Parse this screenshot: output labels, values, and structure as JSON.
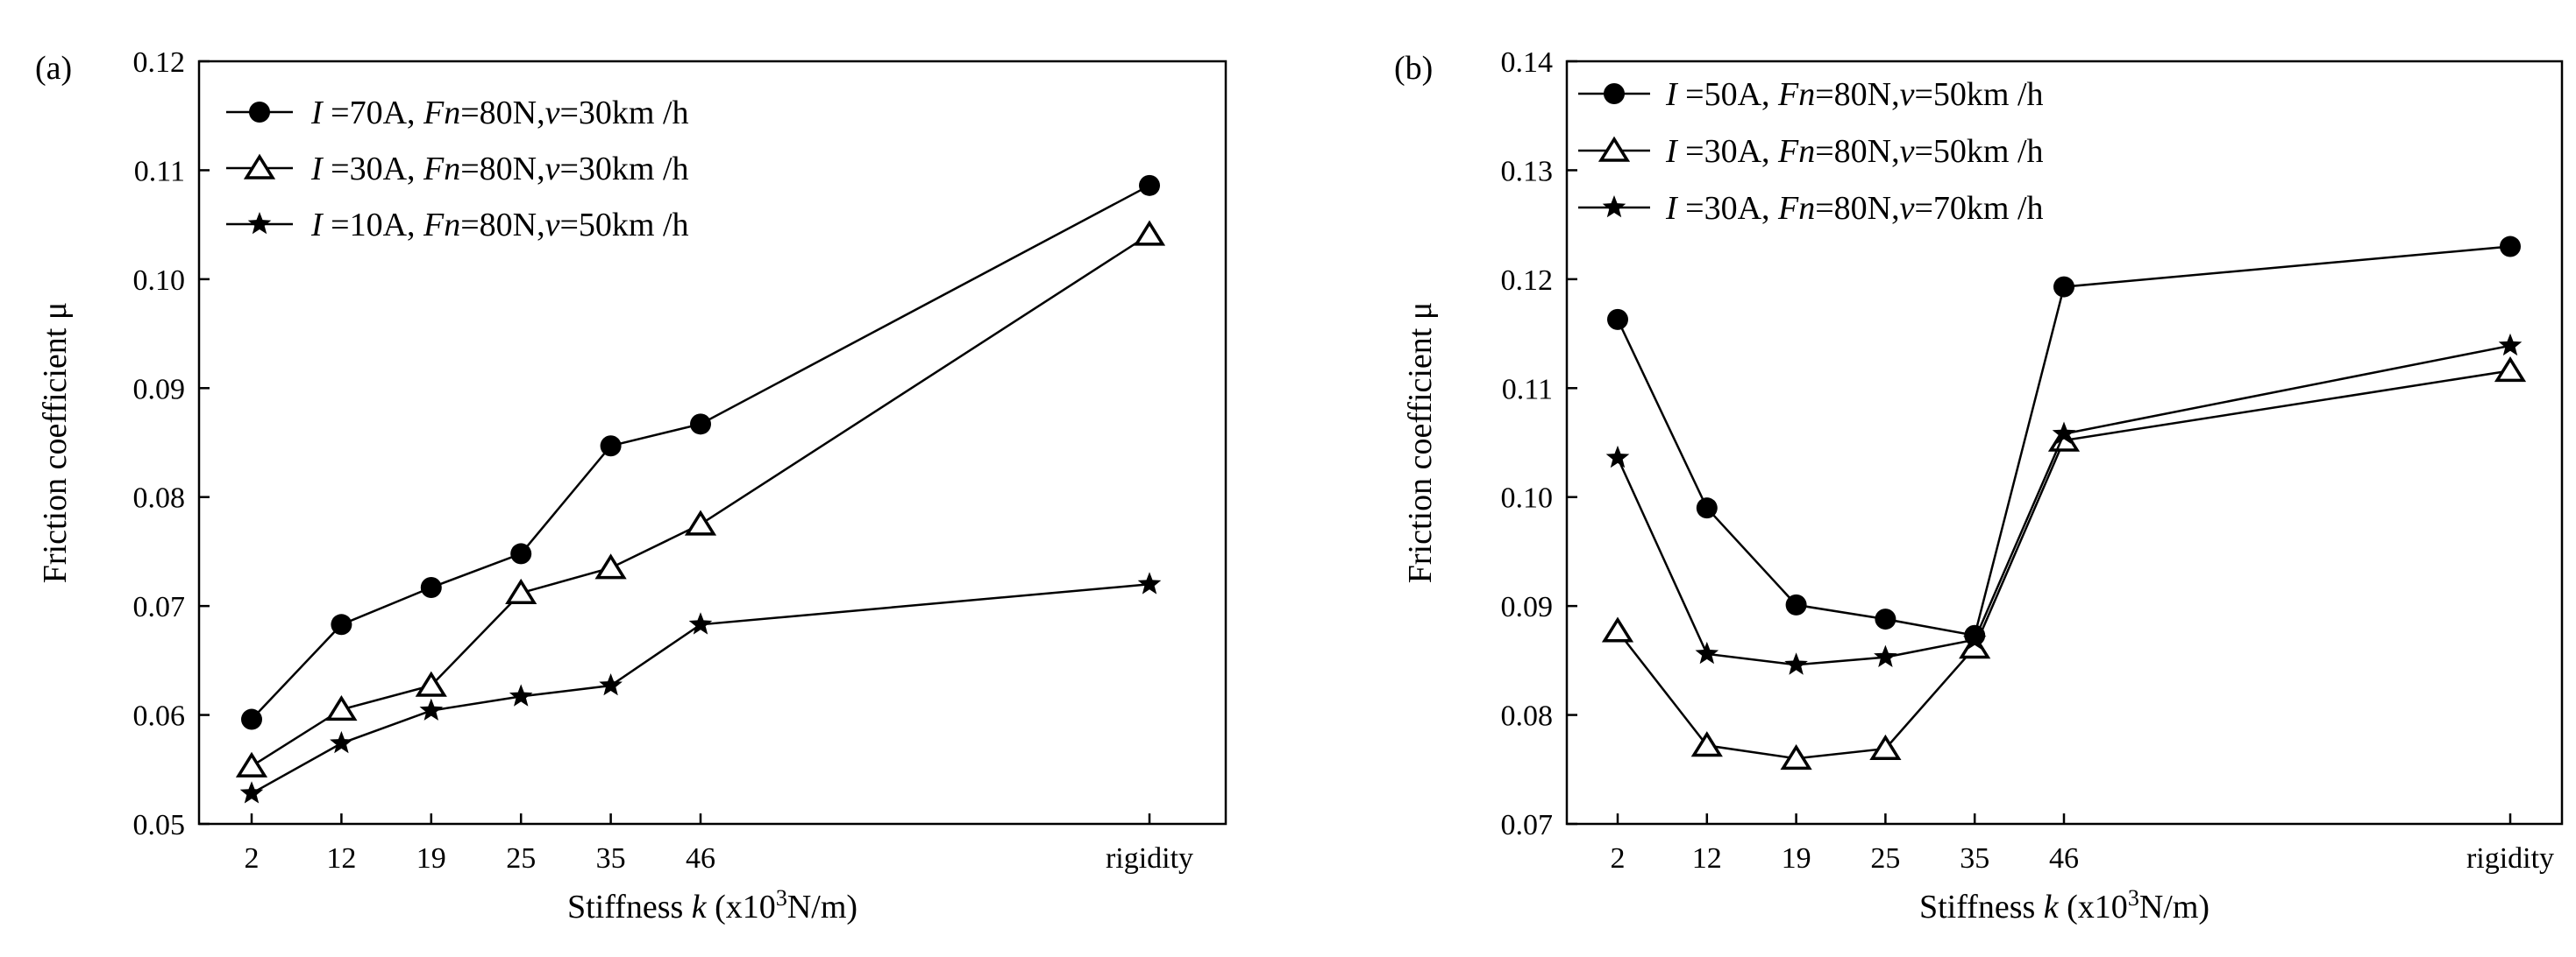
{
  "chart_data": [
    {
      "type": "line",
      "panel_label": "(a)",
      "categories": [
        "2",
        "12",
        "19",
        "25",
        "35",
        "46",
        "rigidity"
      ],
      "ylim": [
        0.05,
        0.12
      ],
      "yticks": [
        "0.05",
        "0.06",
        "0.07",
        "0.08",
        "0.09",
        "0.10",
        "0.11",
        "0.12"
      ],
      "ylabel": "Friction coefficient μ",
      "xlabel": {
        "prefix": "Stiffness ",
        "var": "k",
        "mid": " (x10",
        "sup": "3",
        "suffix": "N/m)"
      },
      "legend_position": "top-left",
      "series": [
        {
          "marker": "circle",
          "values": [
            0.0596,
            0.0683,
            0.0717,
            0.0748,
            0.0847,
            0.0867,
            0.1086
          ],
          "label": {
            "I": "70",
            "Fn": "80",
            "v": "30"
          }
        },
        {
          "marker": "triangle",
          "values": [
            0.0553,
            0.0605,
            0.0627,
            0.0712,
            0.0735,
            0.0775,
            0.1041
          ],
          "label": {
            "I": "30",
            "Fn": "80",
            "v": "30"
          }
        },
        {
          "marker": "star",
          "values": [
            0.0528,
            0.0574,
            0.0604,
            0.0617,
            0.0627,
            0.0683,
            0.072
          ],
          "label": {
            "I": "10",
            "Fn": "80",
            "v": "50"
          }
        }
      ]
    },
    {
      "type": "line",
      "panel_label": "(b)",
      "categories": [
        "2",
        "12",
        "19",
        "25",
        "35",
        "46",
        "rigidity"
      ],
      "ylim": [
        0.07,
        0.14
      ],
      "yticks": [
        "0.07",
        "0.08",
        "0.09",
        "0.10",
        "0.11",
        "0.12",
        "0.13",
        "0.14"
      ],
      "ylabel": "Friction coefficient μ",
      "xlabel": {
        "prefix": "Stiffness ",
        "var": "k",
        "mid": " (x10",
        "sup": "3",
        "suffix": "N/m)"
      },
      "legend_position": "top-left",
      "series": [
        {
          "marker": "circle",
          "values": [
            0.1163,
            0.099,
            0.0901,
            0.0888,
            0.0873,
            0.1193,
            0.123
          ],
          "label": {
            "I": "50",
            "Fn": "80",
            "v": "50"
          }
        },
        {
          "marker": "triangle",
          "values": [
            0.0877,
            0.0772,
            0.076,
            0.0769,
            0.0862,
            0.1052,
            0.1116
          ],
          "label": {
            "I": "30",
            "Fn": "80",
            "v": "50"
          }
        },
        {
          "marker": "star",
          "values": [
            0.1036,
            0.0856,
            0.0846,
            0.0853,
            0.0869,
            0.1058,
            0.1139
          ],
          "label": {
            "I": "30",
            "Fn": "80",
            "v": "70"
          }
        }
      ]
    }
  ]
}
